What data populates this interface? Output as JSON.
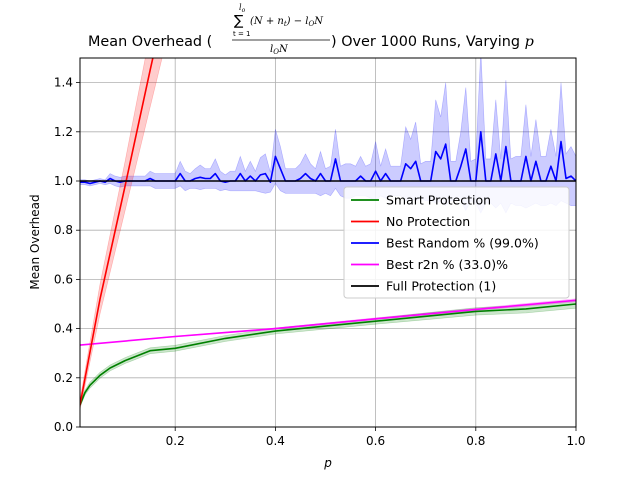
{
  "chart_data": {
    "type": "line",
    "title": {
      "prefix": "Mean Overhead (",
      "sum_symbol": "∑",
      "sum_upper": "l",
      "sum_upper_sub": "o",
      "sum_lower": "t = 1",
      "numerator": "(N + n",
      "numerator_sub": "t",
      "numerator_tail": ") − l",
      "numerator_sub2": "O",
      "numerator_end": "N",
      "denominator": "l",
      "denominator_sub": "O",
      "denominator_end": "N",
      "suffix": ") Over 1000 Runs, Varying ",
      "var": "p"
    },
    "xlabel": "p",
    "ylabel": "Mean Overhead",
    "xlim": [
      0.01,
      1.0
    ],
    "ylim": [
      0.0,
      1.5
    ],
    "xticks": [
      "0.2",
      "0.4",
      "0.6",
      "0.8",
      "1.0"
    ],
    "xtick_values": [
      0.2,
      0.4,
      0.6,
      0.8,
      1.0
    ],
    "yticks": [
      "0.0",
      "0.2",
      "0.4",
      "0.6",
      "0.8",
      "1.0",
      "1.2",
      "1.4"
    ],
    "ytick_values": [
      0.0,
      0.2,
      0.4,
      0.6,
      0.8,
      1.0,
      1.2,
      1.4
    ],
    "grid": true,
    "legend_position": "center-right",
    "legend": [
      "Smart Protection",
      "No Protection",
      "Best Random % (99.0%)",
      "Best r2n % (33.0)%",
      "Full Protection (1)"
    ],
    "series": [
      {
        "name": "Smart Protection",
        "color": "#008000",
        "band_color": "#008000",
        "x": [
          0.01,
          0.02,
          0.03,
          0.04,
          0.05,
          0.07,
          0.1,
          0.15,
          0.2,
          0.3,
          0.4,
          0.5,
          0.6,
          0.7,
          0.8,
          0.9,
          1.0
        ],
        "y": [
          0.09,
          0.14,
          0.17,
          0.19,
          0.21,
          0.24,
          0.27,
          0.31,
          0.32,
          0.36,
          0.39,
          0.41,
          0.43,
          0.45,
          0.47,
          0.48,
          0.5
        ],
        "band": [
          0.01,
          0.01,
          0.012,
          0.012,
          0.012,
          0.012,
          0.012,
          0.012,
          0.012,
          0.012,
          0.012,
          0.012,
          0.012,
          0.014,
          0.015,
          0.016,
          0.017
        ]
      },
      {
        "name": "No Protection",
        "color": "#ff0000",
        "band_color": "#ff0000",
        "x": [
          0.01,
          0.05,
          0.1,
          0.15,
          0.175
        ],
        "y": [
          0.09,
          0.52,
          0.98,
          1.45,
          1.68
        ],
        "band": [
          0.02,
          0.06,
          0.1,
          0.15,
          0.17
        ]
      },
      {
        "name": "Best Random % (99.0%)",
        "color": "#0000ff",
        "band_color": "#0000ff",
        "x": [
          0.01,
          0.02,
          0.03,
          0.04,
          0.05,
          0.06,
          0.07,
          0.08,
          0.09,
          0.1,
          0.11,
          0.12,
          0.13,
          0.14,
          0.15,
          0.16,
          0.17,
          0.18,
          0.19,
          0.2,
          0.21,
          0.22,
          0.23,
          0.24,
          0.25,
          0.26,
          0.27,
          0.28,
          0.29,
          0.3,
          0.31,
          0.32,
          0.33,
          0.34,
          0.35,
          0.36,
          0.37,
          0.38,
          0.39,
          0.4,
          0.41,
          0.42,
          0.43,
          0.44,
          0.45,
          0.46,
          0.47,
          0.48,
          0.49,
          0.5,
          0.51,
          0.52,
          0.53,
          0.54,
          0.55,
          0.56,
          0.57,
          0.58,
          0.59,
          0.6,
          0.61,
          0.62,
          0.63,
          0.64,
          0.65,
          0.66,
          0.67,
          0.68,
          0.69,
          0.7,
          0.71,
          0.72,
          0.73,
          0.74,
          0.75,
          0.76,
          0.77,
          0.78,
          0.79,
          0.8,
          0.81,
          0.82,
          0.83,
          0.84,
          0.85,
          0.86,
          0.87,
          0.88,
          0.89,
          0.9,
          0.91,
          0.92,
          0.93,
          0.94,
          0.95,
          0.96,
          0.97,
          0.98,
          0.99,
          1.0
        ],
        "y": [
          0.995,
          0.995,
          0.99,
          0.995,
          1.0,
          0.995,
          1.01,
          1.0,
          0.995,
          1.0,
          1.0,
          1.0,
          1.0,
          1.0,
          1.01,
          1.0,
          1.0,
          1.0,
          1.0,
          1.0,
          1.03,
          1.0,
          1.0,
          1.01,
          1.015,
          1.01,
          1.01,
          1.03,
          1.0,
          0.995,
          1.0,
          1.0,
          1.03,
          1.0,
          1.02,
          1.0,
          1.025,
          1.03,
          0.995,
          1.1,
          1.05,
          1.0,
          1.0,
          1.0,
          1.01,
          1.03,
          1.01,
          1.0,
          1.03,
          1.0,
          1.0,
          1.09,
          1.0,
          1.0,
          1.0,
          1.0,
          1.02,
          1.0,
          1.0,
          1.04,
          1.0,
          1.03,
          1.0,
          1.0,
          1.0,
          1.07,
          1.05,
          1.08,
          1.0,
          1.0,
          1.0,
          1.12,
          1.09,
          1.15,
          1.0,
          1.0,
          1.06,
          1.13,
          1.0,
          1.0,
          1.2,
          1.0,
          1.0,
          1.11,
          1.0,
          1.14,
          1.0,
          1.0,
          1.0,
          1.1,
          1.0,
          1.08,
          1.0,
          1.0,
          1.06,
          1.0,
          1.16,
          1.01,
          1.02,
          1.0
        ],
        "band": [
          0.01,
          0.01,
          0.01,
          0.01,
          0.01,
          0.01,
          0.02,
          0.02,
          0.02,
          0.02,
          0.02,
          0.02,
          0.02,
          0.02,
          0.03,
          0.03,
          0.03,
          0.03,
          0.03,
          0.03,
          0.05,
          0.04,
          0.03,
          0.04,
          0.05,
          0.04,
          0.04,
          0.06,
          0.04,
          0.03,
          0.04,
          0.04,
          0.07,
          0.04,
          0.06,
          0.04,
          0.07,
          0.08,
          0.04,
          0.11,
          0.09,
          0.05,
          0.05,
          0.05,
          0.06,
          0.08,
          0.06,
          0.05,
          0.09,
          0.05,
          0.06,
          0.12,
          0.06,
          0.07,
          0.07,
          0.06,
          0.08,
          0.06,
          0.07,
          0.12,
          0.06,
          0.1,
          0.06,
          0.06,
          0.06,
          0.15,
          0.12,
          0.16,
          0.07,
          0.08,
          0.08,
          0.21,
          0.17,
          0.25,
          0.08,
          0.08,
          0.14,
          0.25,
          0.08,
          0.09,
          0.33,
          0.09,
          0.09,
          0.22,
          0.09,
          0.27,
          0.09,
          0.1,
          0.1,
          0.21,
          0.1,
          0.17,
          0.1,
          0.1,
          0.15,
          0.1,
          0.24,
          0.1,
          0.12,
          0.1
        ]
      },
      {
        "name": "Best r2n % (33.0)%",
        "color": "#ff00ff",
        "band_color": "#ff00ff",
        "x": [
          0.01,
          0.2,
          0.4,
          0.6,
          0.8,
          1.0
        ],
        "y": [
          0.333,
          0.368,
          0.4,
          0.44,
          0.478,
          0.515
        ],
        "band": [
          0.0,
          0.002,
          0.003,
          0.004,
          0.005,
          0.006
        ]
      },
      {
        "name": "Full Protection (1)",
        "color": "#000000",
        "band_color": "#000000",
        "x": [
          0.01,
          1.0
        ],
        "y": [
          1.0,
          1.0
        ],
        "band": [
          0.0,
          0.0
        ]
      }
    ]
  }
}
